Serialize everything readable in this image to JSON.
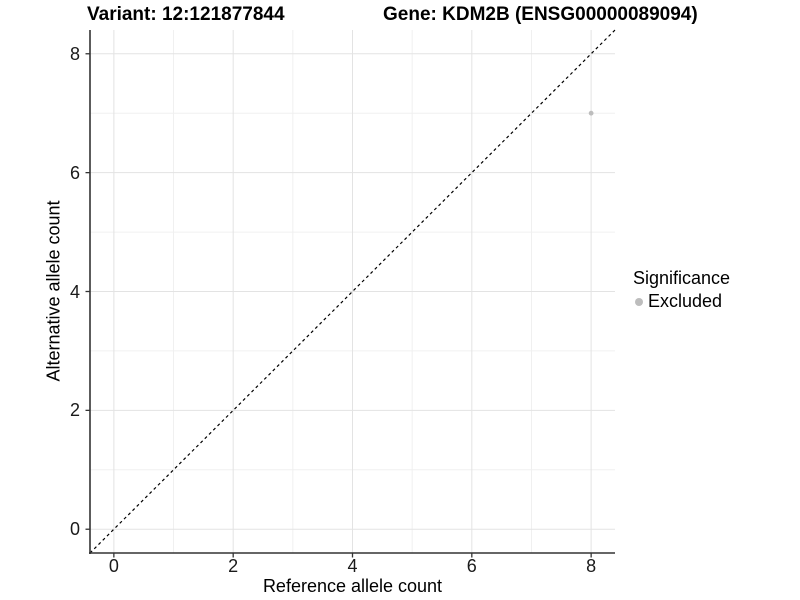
{
  "chart_data": {
    "type": "scatter",
    "title_left": "Variant: 12:121877844",
    "title_right": "Gene: KDM2B (ENSG00000089094)",
    "xlabel": "Reference allele count",
    "ylabel": "Alternative allele count",
    "xlim": [
      -0.4,
      8.4
    ],
    "ylim": [
      -0.4,
      8.4
    ],
    "x_ticks": [
      0,
      2,
      4,
      6,
      8
    ],
    "y_ticks": [
      0,
      2,
      4,
      6,
      8
    ],
    "x_minor_ticks": [
      1,
      3,
      5,
      7
    ],
    "y_minor_ticks": [
      1,
      3,
      5,
      7
    ],
    "grid": true,
    "series": [
      {
        "name": "Excluded",
        "color": "#bdbdbd",
        "points": [
          {
            "x": 8,
            "y": 7
          }
        ]
      }
    ],
    "reference_line": {
      "slope": 1,
      "intercept": 0,
      "style": "dashed",
      "color": "#000000"
    },
    "legend": {
      "title": "Significance",
      "position": "right",
      "entries": [
        {
          "label": "Excluded",
          "color": "#bdbdbd"
        }
      ]
    },
    "colors": {
      "grid_major": "#e3e3e3",
      "grid_minor": "#f0f0f0",
      "axis_line": "#333333",
      "point": "#bdbdbd"
    }
  }
}
